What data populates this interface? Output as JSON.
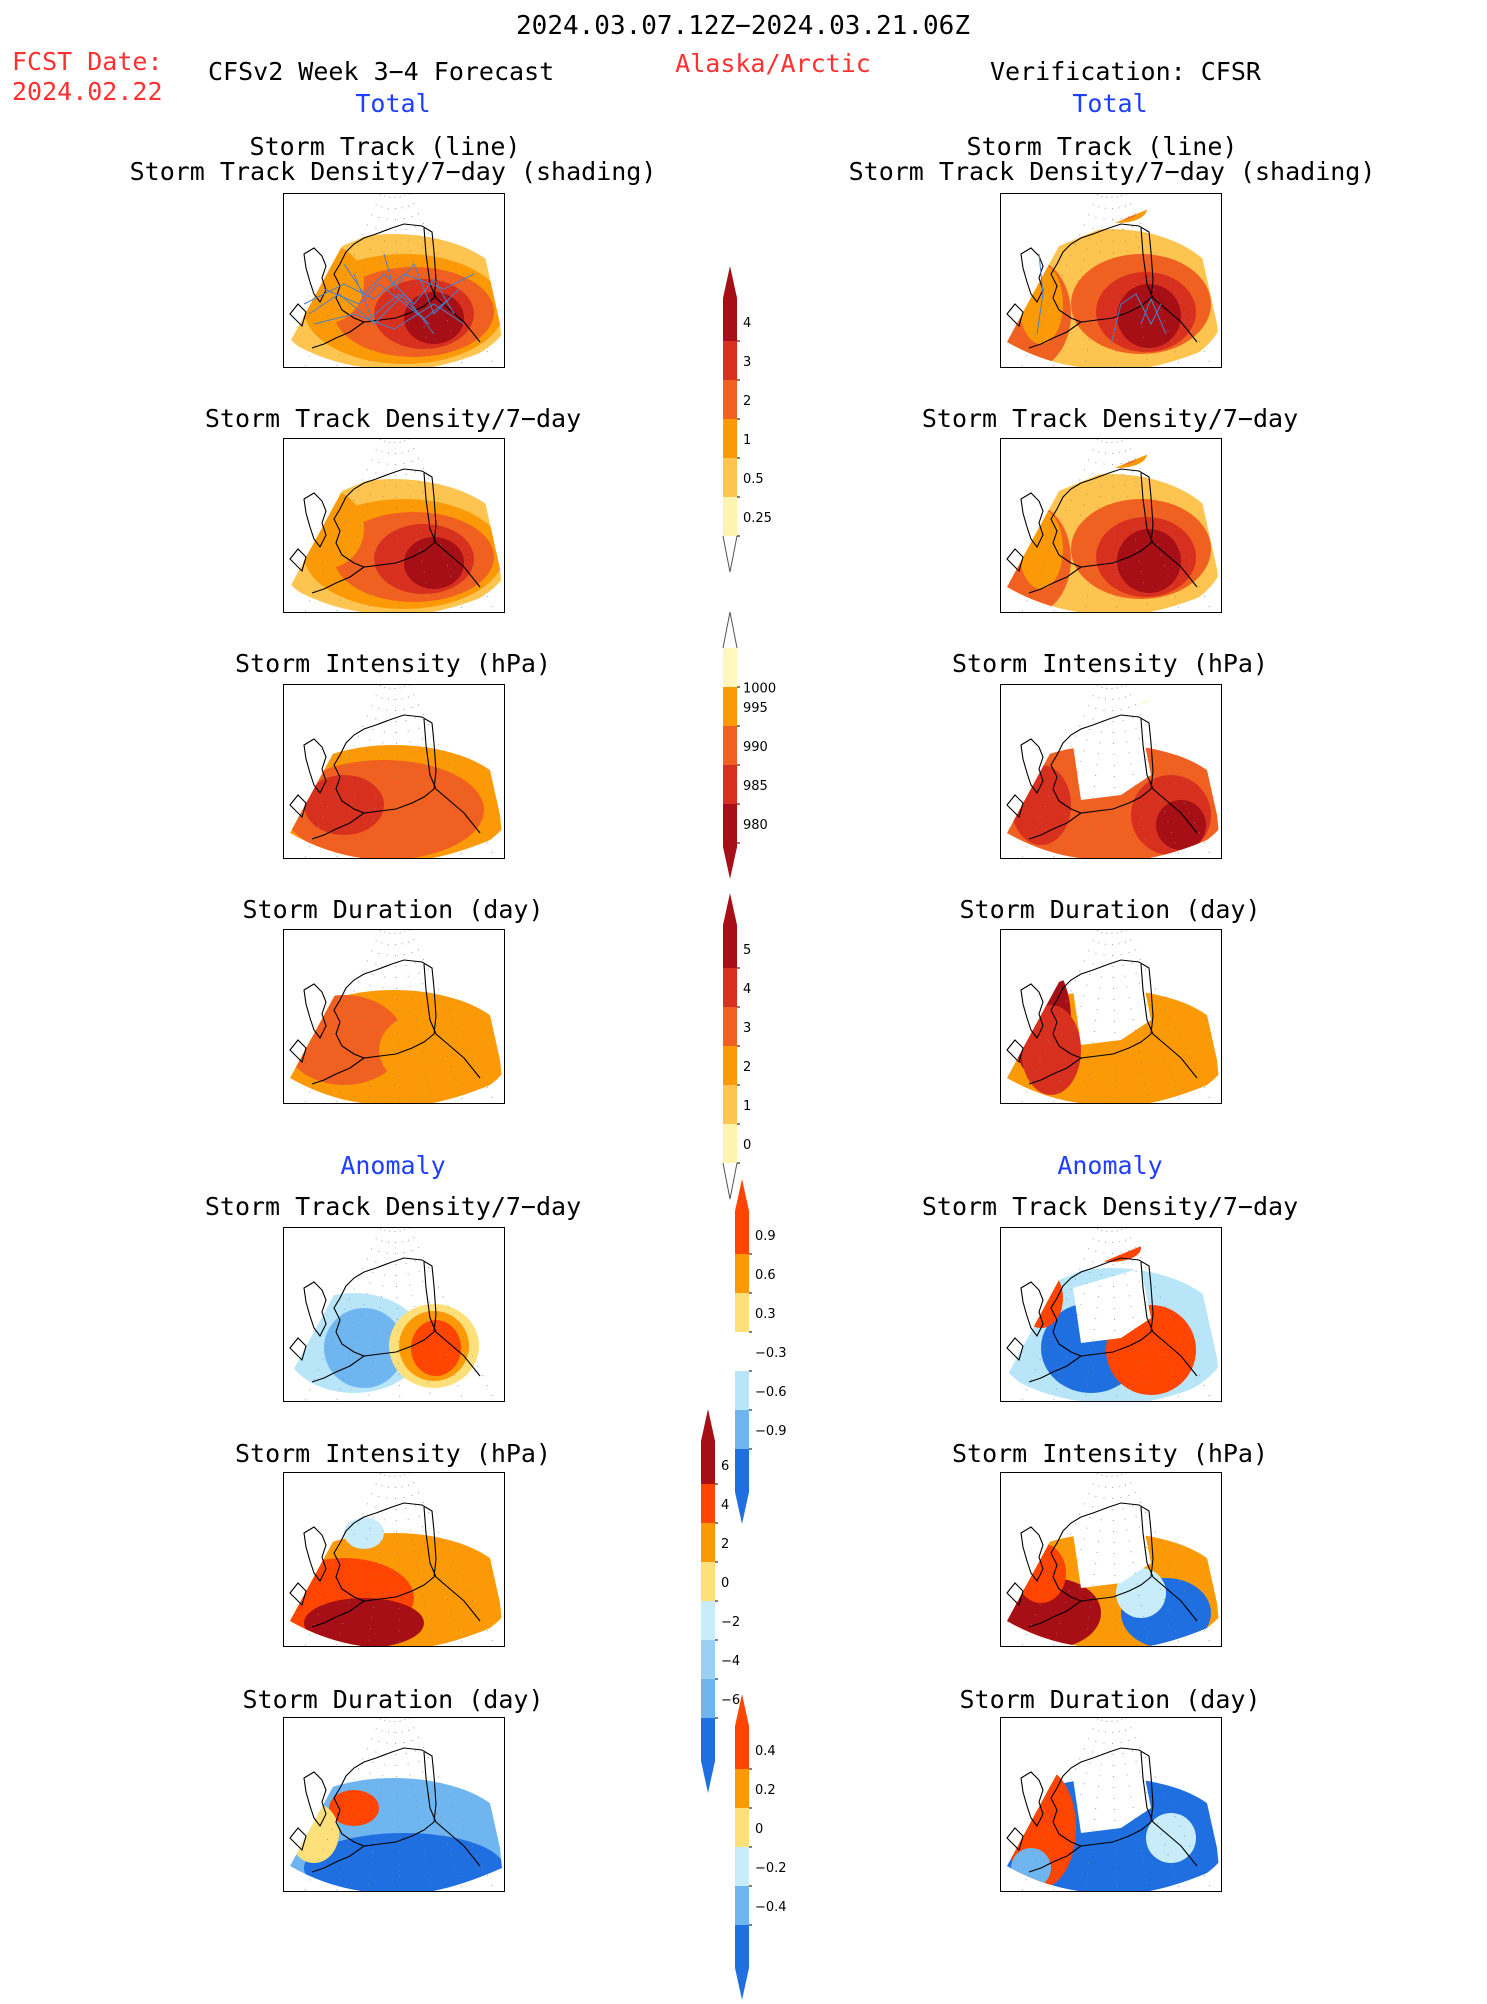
{
  "header": {
    "period": "2024.03.07.12Z−2024.03.21.06Z",
    "region": "Alaska/Arctic",
    "fcst_label": "FCST Date:",
    "fcst_date": "2024.02.22",
    "model_title": "CFSv2 Week 3−4 Forecast",
    "verif_title": "Verification: CFSR"
  },
  "sections": {
    "total": "Total",
    "anomaly": "Anomaly"
  },
  "panel_titles": {
    "track_line": "Storm Track (line)",
    "track_shading": "Storm Track Density/7−day (shading)",
    "density": "Storm Track Density/7−day",
    "intensity": "Storm Intensity (hPa)",
    "duration": "Storm Duration (day)"
  },
  "colorbars": {
    "density": {
      "labels": [
        "4",
        "3",
        "2",
        "1",
        "0.5",
        "0.25"
      ],
      "colors": [
        "#a50f15",
        "#d7301f",
        "#f06020",
        "#fb9a06",
        "#fdc450",
        "#fff3b0"
      ]
    },
    "intensity": {
      "labels": [
        "1000",
        "995",
        "990",
        "985",
        "980"
      ],
      "colors": [
        "#fff7bc",
        "#fb9a06",
        "#f06020",
        "#d7301f",
        "#a50f15"
      ]
    },
    "duration": {
      "labels": [
        "5",
        "4",
        "3",
        "2",
        "1",
        "0"
      ],
      "colors": [
        "#a50f15",
        "#d7301f",
        "#f06020",
        "#fb9a06",
        "#fdc450",
        "#fff3b0"
      ]
    },
    "density_anom": {
      "labels": [
        "0.9",
        "0.6",
        "0.3",
        "−0.3",
        "−0.6",
        "−0.9"
      ],
      "colors": [
        "#ff4500",
        "#fb9a06",
        "#fde07a",
        "#ffffff",
        "#b8e6f8",
        "#6fb6f0",
        "#1f6fe0"
      ]
    },
    "intensity_anom": {
      "labels": [
        "6",
        "4",
        "2",
        "0",
        "−2",
        "−4",
        "−6"
      ],
      "colors": [
        "#a50f15",
        "#ff4500",
        "#fb9a06",
        "#fde07a",
        "#c8ecfa",
        "#9ad0f4",
        "#6fb6f0",
        "#1f6fe0"
      ]
    },
    "duration_anom": {
      "labels": [
        "0.4",
        "0.2",
        "0",
        "−0.2",
        "−0.4"
      ],
      "colors": [
        "#ff4500",
        "#fb9a06",
        "#fde07a",
        "#c8ecfa",
        "#6fb6f0",
        "#1f6fe0"
      ]
    }
  },
  "palette": {
    "land_outline": "#000000",
    "track_line": "#4a80c8",
    "title_red": "#ff3030",
    "title_blue": "#1f3fff"
  }
}
